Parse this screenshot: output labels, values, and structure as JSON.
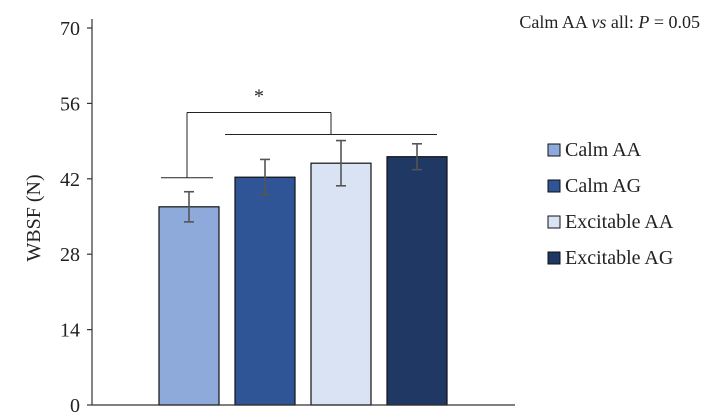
{
  "chart_data": {
    "type": "bar",
    "stat_note": {
      "prefix": "Calm AA ",
      "vs": "vs",
      "middle": " all: ",
      "p": "P",
      "suffix": " = 0.05"
    },
    "ylabel": "WBSF (N)",
    "ylim": [
      0,
      70
    ],
    "yticks": [
      0,
      14,
      28,
      42,
      56,
      70
    ],
    "grid": false,
    "legend_position": "right",
    "series": [
      {
        "name": "Calm AA",
        "value": 36.8,
        "error": 2.8,
        "color": "#8eaadb"
      },
      {
        "name": "Calm AG",
        "value": 42.3,
        "error": 3.3,
        "color": "#2f5597"
      },
      {
        "name": "Excitable AA",
        "value": 44.9,
        "error": 4.2,
        "color": "#dae3f3"
      },
      {
        "name": "Excitable AG",
        "value": 46.1,
        "error": 2.4,
        "color": "#203864"
      }
    ],
    "significance": {
      "label": "*"
    }
  }
}
